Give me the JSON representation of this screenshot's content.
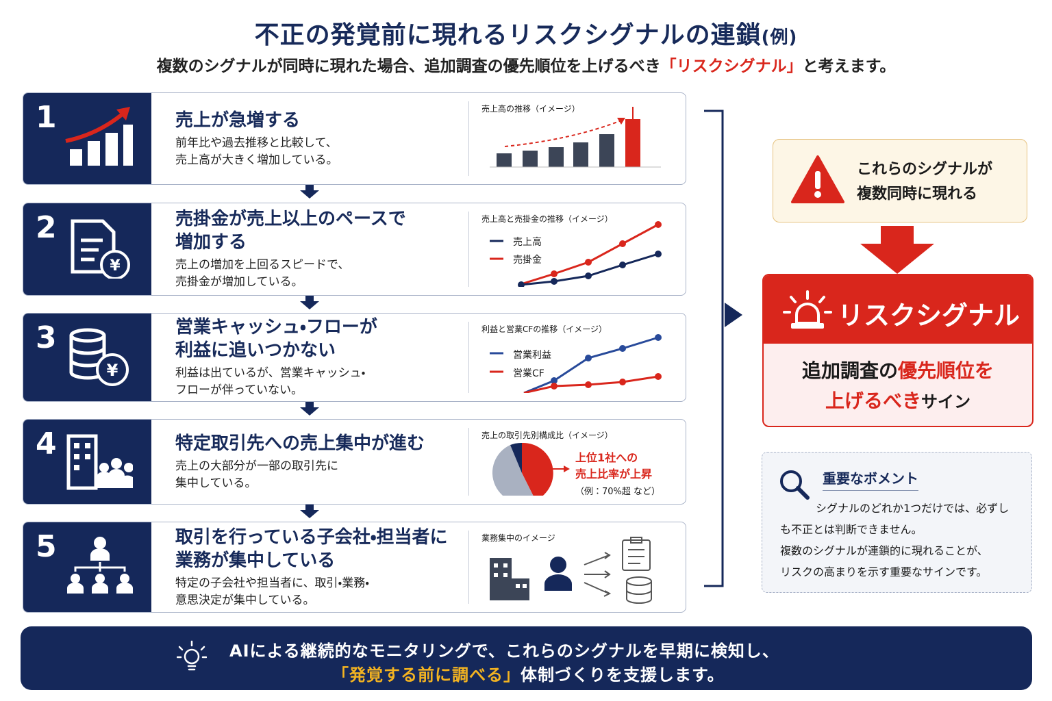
{
  "header": {
    "title": "不正の発覚前に現れるリスクシグナルの連鎖",
    "title_note": "(例)",
    "subtitle": [
      "複数のシグナルが同時に現れた場合、追加調査の優先順位を上げるべき",
      "「リスクシグナル」",
      "と考えます。"
    ]
  },
  "steps": [
    {
      "number": "1",
      "title": [
        "売上が急増する"
      ],
      "description": [
        "前年比や過去推移と比較して、",
        "売上高が大きく増加している。"
      ],
      "chart_title": "売上高の推移",
      "chart_note": "（イメージ）"
    },
    {
      "number": "2",
      "title": [
        "売掛金が売上以上のペースで",
        "増加する"
      ],
      "description": [
        "売上の増加を上回るスピードで、",
        "売掛金が増加している。"
      ],
      "chart_title": "売上高と売掛金の推移",
      "chart_note": "（イメージ）",
      "legend": [
        "売上高",
        "売掛金"
      ]
    },
    {
      "number": "3",
      "title": [
        "営業キャッシュ・フローが",
        "利益に追いつかない"
      ],
      "description": [
        "利益は出ているが、営業キャッシュ・",
        "フローが伴っていない。"
      ],
      "chart_title": "利益と営業CFの推移",
      "chart_note": "（イメージ）",
      "legend": [
        "営業利益",
        "営業CF"
      ]
    },
    {
      "number": "4",
      "title": [
        "特定取引先への売上集中が進む"
      ],
      "description": [
        "売上の大部分が一部の取引先に",
        "集中している。"
      ],
      "chart_title": "売上の取引先別構成比",
      "chart_note": "（イメージ）",
      "callout": [
        "上位1社への",
        "売上比率が上昇"
      ],
      "callout_note": "（例：70%超 など）"
    },
    {
      "number": "5",
      "title": [
        "取引を行っている子会社・担当者に",
        "業務が集中している"
      ],
      "description": [
        "特定の子会社や担当者に、取引・業務・",
        "意思決定が集中している。"
      ],
      "chart_title": "業務集中のイメージ"
    }
  ],
  "alert": [
    "これらのシグナルが",
    "複数同時に現れる"
  ],
  "signal": {
    "title": "リスクシグナル",
    "body": [
      [
        "追加調査の",
        "優先順位を"
      ],
      [
        "上げるべき",
        "サイン"
      ]
    ]
  },
  "point": {
    "title": "重要なボメント",
    "lines": [
      "シグナルのどれか1つだけでは、必ずし",
      "も不正とは判断できません。",
      "複数のシグナルが連鎖的に現れることが、",
      "リスクの高まりを示す重要なサインです。"
    ]
  },
  "footer": {
    "line1": "AIによる継続的なモニタリングで、これらのシグナルを早期に検知し、",
    "line2": [
      "「発覚する前に調べる」",
      "体制づくりを支援します。"
    ]
  }
}
